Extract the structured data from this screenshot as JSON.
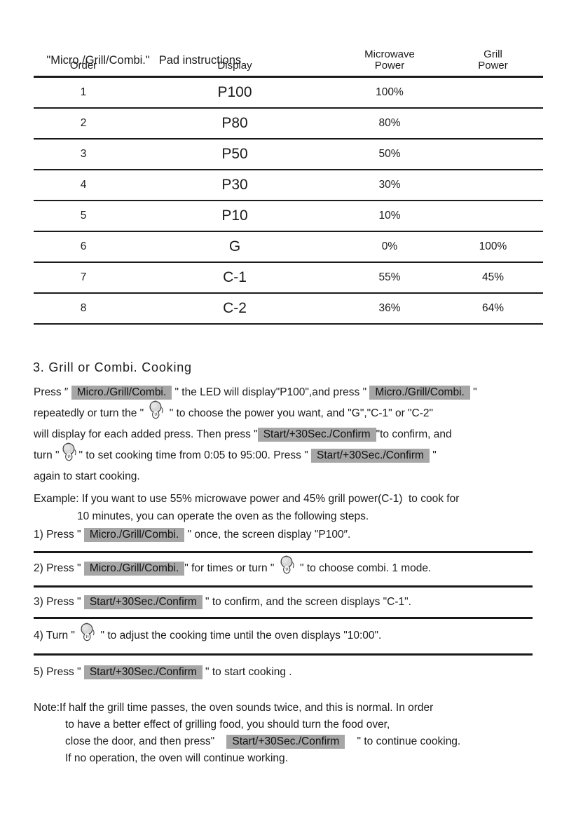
{
  "colors": {
    "highlight_bg": "#a6a6a6",
    "text": "#1b1b1b",
    "rule": "#191919"
  },
  "table": {
    "title": {
      "quoted": "\"Micro./Grill/Combi.\"",
      "rest": "Pad instructions"
    },
    "headers": [
      "Order",
      "Display",
      "Microwave\nPower",
      "Grill\nPower"
    ],
    "rows": [
      {
        "order": "1",
        "display": "P100",
        "microwave": "100%",
        "grill": ""
      },
      {
        "order": "2",
        "display": "P80",
        "microwave": "80%",
        "grill": ""
      },
      {
        "order": "3",
        "display": "P50",
        "microwave": "50%",
        "grill": ""
      },
      {
        "order": "4",
        "display": "P30",
        "microwave": "30%",
        "grill": ""
      },
      {
        "order": "5",
        "display": "P10",
        "microwave": "10%",
        "grill": ""
      },
      {
        "order": "6",
        "display": "G",
        "microwave": "0%",
        "grill": "100%"
      },
      {
        "order": "7",
        "display": "C-1",
        "microwave": "55%",
        "grill": "45%"
      },
      {
        "order": "8",
        "display": "C-2",
        "microwave": "36%",
        "grill": "64%"
      }
    ]
  },
  "keys": {
    "mgc": {
      "label": "Micro./Grill/Combi.",
      "name": "micro-grill-combi-key-label"
    },
    "start": {
      "label": "Start/+30Sec./Confirm",
      "name": "start-confirm-key-label"
    }
  },
  "section": {
    "heading": "3. Grill or Combi. Cooking",
    "intro_lines": [
      [
        {
          "t": "Press ″ "
        },
        {
          "k": "mgc"
        },
        {
          "t": " \" the LED will display\"P100\",and press \" "
        },
        {
          "k": "mgc"
        },
        {
          "t": " \""
        }
      ],
      [
        {
          "t": "repeatedly or turn the \" "
        },
        {
          "i": "knob"
        },
        {
          "t": " \" to choose the power you want, and \"G\",\"C-1\" or \"C-2\""
        }
      ],
      [
        {
          "t": "will display for each added press. Then press \""
        },
        {
          "k": "start"
        },
        {
          "t": "\"to confirm, and"
        }
      ],
      [
        {
          "t": "turn \""
        },
        {
          "i": "knob"
        },
        {
          "t": "\" to set cooking time from 0:05 to 95:00. Press \" "
        },
        {
          "k": "start"
        },
        {
          "t": " \""
        }
      ],
      [
        {
          "t": "again to start cooking."
        }
      ]
    ],
    "example_lines": [
      [
        {
          "t": "Example: If you want to use 55% microwave power and 45% grill power(C-1)  to cook for"
        }
      ],
      [
        {
          "t": "10 minutes, you can operate the oven as the following steps."
        }
      ]
    ],
    "steps": [
      {
        "lines": [
          [
            {
              "t": "1) Press \" "
            },
            {
              "k": "mgc"
            },
            {
              "t": " \" once, the screen display \"P100″."
            }
          ]
        ]
      },
      {
        "lines": [
          [
            {
              "t": "2) Press \" "
            },
            {
              "k": "mgc"
            },
            {
              "t": "\" for times or turn \" "
            },
            {
              "i": "knob"
            },
            {
              "t": " \" to choose combi. 1 mode."
            }
          ]
        ]
      },
      {
        "lines": [
          [
            {
              "t": "3) Press \" "
            },
            {
              "k": "start"
            },
            {
              "t": " \" to confirm, and the screen displays \"C-1\"."
            }
          ]
        ]
      },
      {
        "lines": [
          [
            {
              "t": "4) Turn \" "
            },
            {
              "i": "knob"
            },
            {
              "t": " \" to adjust the cooking time until the oven displays \"10:00\"."
            }
          ]
        ]
      },
      {
        "lines": [
          [
            {
              "t": "5) Press \" "
            },
            {
              "k": "start"
            },
            {
              "t": " \" to start cooking ."
            }
          ]
        ]
      }
    ],
    "note_lines": [
      [
        {
          "t": "Note:If half the grill time passes, the oven sounds twice, and this is normal. In order"
        }
      ],
      [
        {
          "t": "to have a better effect of grilling food, you should turn the food over,"
        }
      ],
      [
        {
          "t": "close the door, and then press\"    "
        },
        {
          "k": "start"
        },
        {
          "t": "    \" to continue cooking."
        }
      ],
      [
        {
          "t": "If no operation, the oven will continue working."
        }
      ]
    ]
  }
}
